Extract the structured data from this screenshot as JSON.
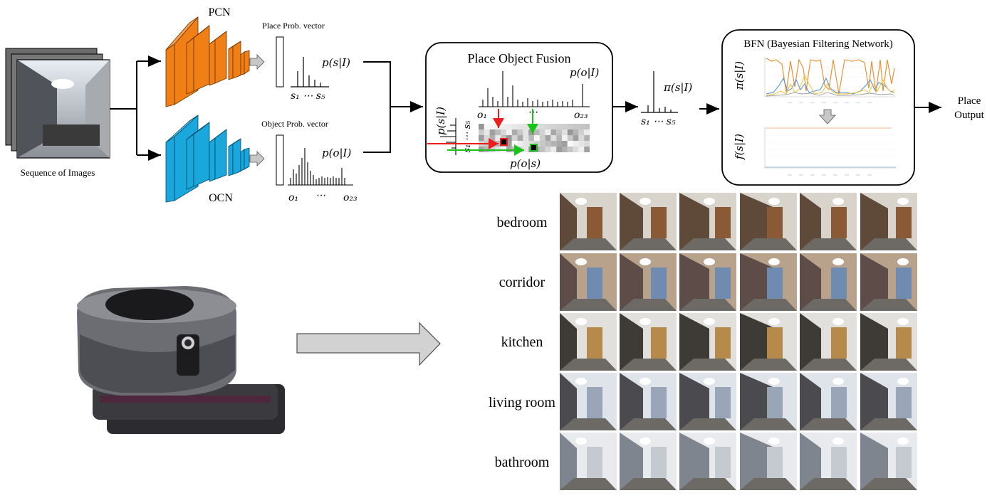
{
  "pipeline": {
    "input_caption": "Sequence of Images",
    "pcn_label": "PCN",
    "ocn_label": "OCN",
    "place_vector_label": "Place Prob. vector",
    "object_vector_label": "Object Prob. vector",
    "p_s_given_I": "p(s|I)",
    "p_o_given_I": "p(o|I)",
    "s_axis": "s₁ ⋯ s₅",
    "o_axis_start": "o₁",
    "o_axis_dots": "⋯",
    "o_axis_end": "o₂₃"
  },
  "fusion": {
    "title": "Place Object Fusion",
    "p_o_given_I": "p(o|I)",
    "p_s_given_I": "p(s|I)",
    "p_o_given_s": "p(o|s)",
    "o_start": "o₁",
    "o_dots": "⋯",
    "o_end": "o₂₃",
    "s_axis_vertical": "s₁ ⋯ s₅"
  },
  "fused": {
    "pi_label": "π(s|I)",
    "s_axis": "s₁ ⋯ s₅"
  },
  "bfn": {
    "title": "BFN (Bayesian Filtering Network)",
    "pi_axis_label": "π(s|I)",
    "f_axis_label": "f(s|I)"
  },
  "output": {
    "line1": "Place",
    "line2": "Output"
  },
  "classes": [
    "bedroom",
    "corridor",
    "kitchen",
    "living room",
    "bathroom"
  ],
  "colors": {
    "pcn": "#f07f16",
    "ocn": "#1aa7db",
    "arrow_red": "#ee1c1c",
    "arrow_green": "#19c319"
  }
}
